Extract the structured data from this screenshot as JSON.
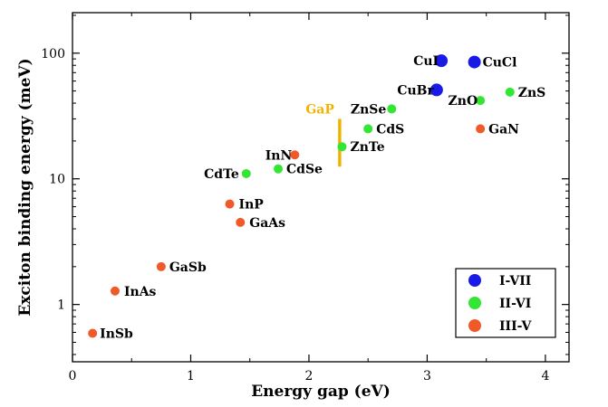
{
  "chart_data": {
    "type": "scatter",
    "xlabel": "Energy gap (eV)",
    "ylabel": "Exciton binding energy (meV)",
    "xlim": [
      0,
      4.2
    ],
    "ylim": [
      0.35,
      210
    ],
    "y_scale": "log",
    "x_ticks": [
      0,
      1,
      2,
      3,
      4
    ],
    "x_tick_labels": [
      "0",
      "1",
      "2",
      "3",
      "4"
    ],
    "y_ticks": [
      1,
      10,
      100
    ],
    "y_tick_labels": [
      "1",
      "10",
      "100"
    ],
    "grid": false,
    "legend_position": "bottom-right",
    "colors": {
      "I-VII": "#1a1ae6",
      "II-VI": "#33e633",
      "III-V": "#f05a28",
      "annotation": "#f0b400"
    },
    "series": [
      {
        "name": "I-VII",
        "points": [
          {
            "label": "CuI",
            "x": 3.12,
            "y": 87
          },
          {
            "label": "CuCl",
            "x": 3.4,
            "y": 85
          },
          {
            "label": "CuBr",
            "x": 3.08,
            "y": 51
          }
        ]
      },
      {
        "name": "II-VI",
        "points": [
          {
            "label": "ZnS",
            "x": 3.7,
            "y": 49
          },
          {
            "label": "ZnO",
            "x": 3.45,
            "y": 42
          },
          {
            "label": "ZnSe",
            "x": 2.7,
            "y": 36
          },
          {
            "label": "CdS",
            "x": 2.5,
            "y": 25
          },
          {
            "label": "ZnTe",
            "x": 2.28,
            "y": 18
          },
          {
            "label": "CdSe",
            "x": 1.74,
            "y": 12
          },
          {
            "label": "CdTe",
            "x": 1.47,
            "y": 11
          }
        ]
      },
      {
        "name": "III-V",
        "points": [
          {
            "label": "GaN",
            "x": 3.45,
            "y": 25
          },
          {
            "label": "InN",
            "x": 1.88,
            "y": 15.5
          },
          {
            "label": "InP",
            "x": 1.33,
            "y": 6.3
          },
          {
            "label": "GaAs",
            "x": 1.42,
            "y": 4.5
          },
          {
            "label": "GaSb",
            "x": 0.75,
            "y": 2.0
          },
          {
            "label": "InAs",
            "x": 0.36,
            "y": 1.28
          },
          {
            "label": "InSb",
            "x": 0.17,
            "y": 0.59
          }
        ]
      }
    ],
    "annotations": [
      {
        "label": "GaP",
        "x": 2.26,
        "y_range": [
          12.5,
          30
        ]
      }
    ]
  }
}
